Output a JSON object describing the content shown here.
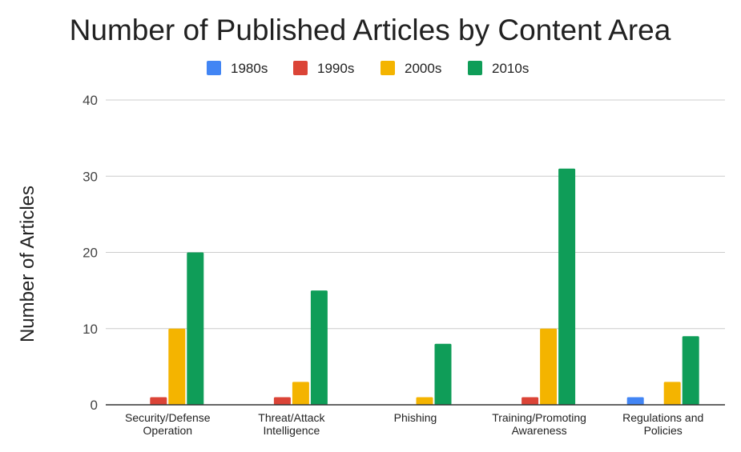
{
  "chart_data": {
    "type": "bar",
    "title": "Number of Published Articles by Content Area",
    "xlabel": "",
    "ylabel": "Number of Articles",
    "ylim": [
      0,
      40
    ],
    "yticks": [
      0,
      10,
      20,
      30,
      40
    ],
    "grid": true,
    "legend_position": "top-center",
    "categories": [
      [
        "Security/Defense",
        "Operation"
      ],
      [
        "Threat/Attack",
        "Intelligence"
      ],
      [
        "Phishing"
      ],
      [
        "Training/Promoting",
        "Awareness"
      ],
      [
        "Regulations and",
        "Policies"
      ]
    ],
    "series": [
      {
        "name": "1980s",
        "color": "#4285f4",
        "values": [
          0,
          0,
          0,
          0,
          1
        ]
      },
      {
        "name": "1990s",
        "color": "#db4437",
        "values": [
          1,
          1,
          0,
          1,
          0
        ]
      },
      {
        "name": "2000s",
        "color": "#f4b400",
        "values": [
          10,
          3,
          1,
          10,
          3
        ]
      },
      {
        "name": "2010s",
        "color": "#0f9d58",
        "values": [
          20,
          15,
          8,
          31,
          9
        ]
      }
    ]
  }
}
